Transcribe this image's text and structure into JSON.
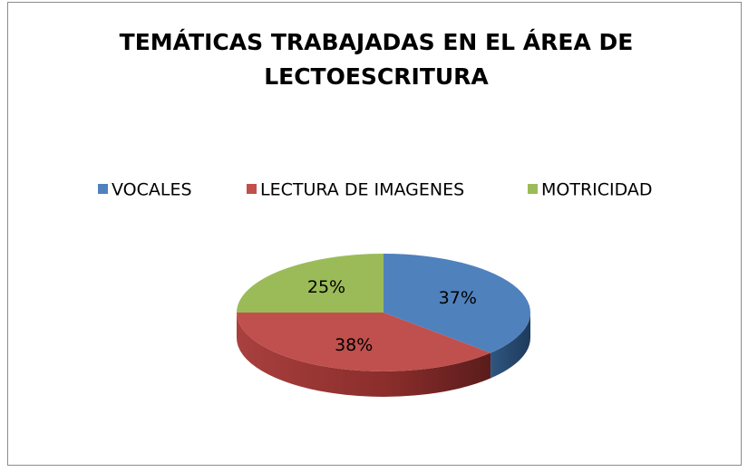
{
  "chart_data": {
    "type": "pie3d",
    "title": "TEMÁTICAS TRABAJADAS EN EL ÁREA DE LECTOESCRITURA",
    "categories": [
      "VOCALES",
      "LECTURA DE IMAGENES",
      "MOTRICIDAD"
    ],
    "values": [
      37,
      38,
      25
    ],
    "value_labels": [
      "37%",
      "38%",
      "25%"
    ],
    "colors": [
      "#4f81bd",
      "#c0504d",
      "#9bbb59"
    ],
    "legend": "top"
  }
}
